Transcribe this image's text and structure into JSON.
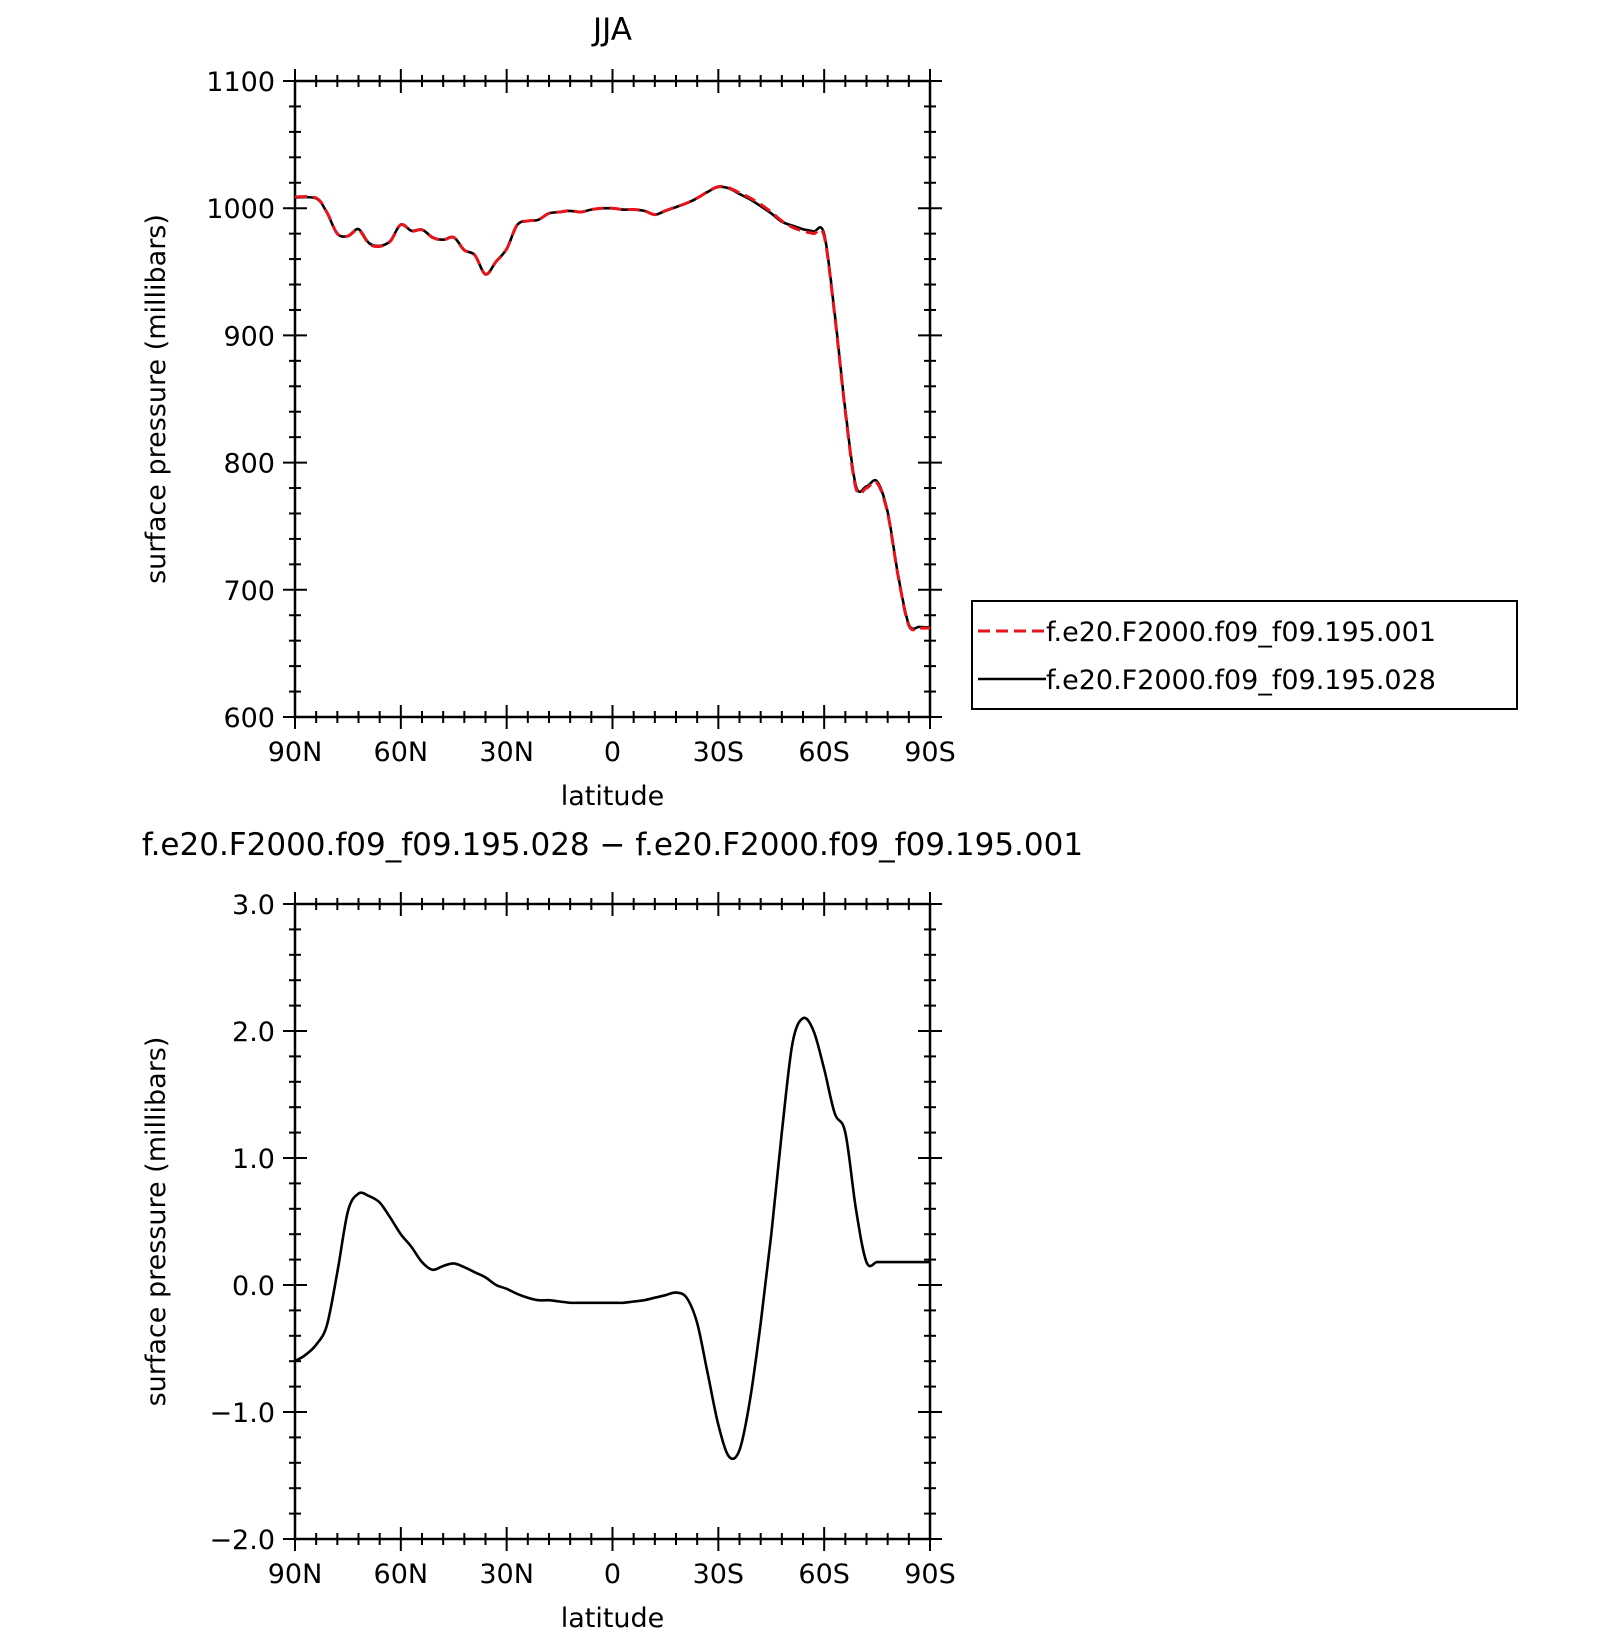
{
  "chart_data": [
    {
      "type": "line",
      "title": "JJA",
      "xlabel": "latitude",
      "ylabel": "surface pressure (millibars)",
      "xlim": [
        90,
        -90
      ],
      "ylim": [
        600,
        1100
      ],
      "xticks": [
        90,
        60,
        30,
        0,
        -30,
        -60,
        -90
      ],
      "xtick_labels": [
        "90N",
        "60N",
        "30N",
        "0",
        "30S",
        "60S",
        "90S"
      ],
      "yticks": [
        600,
        700,
        800,
        900,
        1000,
        1100
      ],
      "ytick_labels": [
        "600",
        "700",
        "800",
        "900",
        "1000",
        "1100"
      ],
      "legend": {
        "position": "right",
        "entries": [
          "f.e20.F2000.f09_f09.195.001",
          "f.e20.F2000.f09_f09.195.028"
        ]
      },
      "series": [
        {
          "name": "f.e20.F2000.f09_f09.195.001",
          "color": "#e8141c",
          "dash": "dashed",
          "x": [
            90,
            84,
            81,
            78,
            75,
            72,
            69,
            66,
            63,
            60,
            57,
            54,
            51,
            48,
            45,
            42,
            39,
            36,
            33,
            30,
            27,
            24,
            21,
            18,
            15,
            12,
            9,
            6,
            3,
            0,
            -3,
            -6,
            -9,
            -12,
            -15,
            -18,
            -21,
            -24,
            -27,
            -30,
            -33,
            -36,
            -39,
            -42,
            -45,
            -48,
            -51,
            -54,
            -57,
            -60,
            -63,
            -66,
            -69,
            -72,
            -75,
            -78,
            -81,
            -84,
            -87,
            -90
          ],
          "y": [
            1009,
            1008,
            997,
            980,
            978,
            983,
            972,
            970,
            974,
            987,
            982,
            983,
            977,
            975,
            977,
            967,
            963,
            948,
            958,
            968,
            987,
            990,
            991,
            996,
            997,
            998,
            997,
            999,
            1000,
            1000,
            999,
            999,
            998,
            995,
            998,
            1001,
            1004,
            1008,
            1013,
            1017,
            1016,
            1012,
            1008,
            1003,
            997,
            990,
            985,
            982,
            980,
            978,
            915,
            840,
            780,
            780,
            784,
            760,
            710,
            672,
            670,
            670
          ]
        },
        {
          "name": "f.e20.F2000.f09_f09.195.028",
          "color": "#000000",
          "dash": "solid",
          "x": [
            90,
            84,
            81,
            78,
            75,
            72,
            69,
            66,
            63,
            60,
            57,
            54,
            51,
            48,
            45,
            42,
            39,
            36,
            33,
            30,
            27,
            24,
            21,
            18,
            15,
            12,
            9,
            6,
            3,
            0,
            -3,
            -6,
            -9,
            -12,
            -15,
            -18,
            -21,
            -24,
            -27,
            -30,
            -33,
            -36,
            -39,
            -42,
            -45,
            -48,
            -51,
            -54,
            -57,
            -60,
            -63,
            -66,
            -69,
            -72,
            -75,
            -78,
            -81,
            -84,
            -87,
            -90
          ],
          "y": [
            1008.5,
            1007.6,
            996.7,
            979.9,
            978.2,
            983.6,
            972.5,
            970.4,
            974.3,
            987.2,
            982.3,
            983.2,
            977.1,
            975.2,
            977.1,
            967.1,
            963.1,
            948.1,
            958.1,
            968,
            986.9,
            989.9,
            990.9,
            995.9,
            996.9,
            997.9,
            996.9,
            998.9,
            999.9,
            999.9,
            998.9,
            998.9,
            997.9,
            994.9,
            997.9,
            1000.9,
            1003.9,
            1007.9,
            1012.9,
            1016.7,
            1015.6,
            1011.2,
            1006.9,
            1001.6,
            995.9,
            989.3,
            986.3,
            983.5,
            981.8,
            979.7,
            916.5,
            841.5,
            781.7,
            781.3,
            785.2,
            761.1,
            710.8,
            672.8,
            670.8,
            670.5
          ]
        }
      ]
    },
    {
      "type": "line",
      "title": "f.e20.F2000.f09_f09.195.028 − f.e20.F2000.f09_f09.195.001",
      "xlabel": "latitude",
      "ylabel": "surface pressure (millibars)",
      "xlim": [
        90,
        -90
      ],
      "ylim": [
        -2.0,
        3.0
      ],
      "xticks": [
        90,
        60,
        30,
        0,
        -30,
        -60,
        -90
      ],
      "xtick_labels": [
        "90N",
        "60N",
        "30N",
        "0",
        "30S",
        "60S",
        "90S"
      ],
      "yticks": [
        -2.0,
        -1.0,
        0.0,
        1.0,
        2.0,
        3.0
      ],
      "ytick_labels": [
        "−2.0",
        "−1.0",
        "0.0",
        "1.0",
        "2.0",
        "3.0"
      ],
      "series": [
        {
          "color": "#000000",
          "dash": "solid",
          "x": [
            90,
            87,
            84,
            81,
            78,
            75,
            72,
            69,
            66,
            63,
            60,
            57,
            54,
            51,
            48,
            45,
            42,
            39,
            36,
            33,
            30,
            27,
            24,
            21,
            18,
            15,
            12,
            9,
            6,
            3,
            0,
            -3,
            -6,
            -9,
            -12,
            -15,
            -18,
            -21,
            -24,
            -27,
            -30,
            -33,
            -36,
            -39,
            -42,
            -45,
            -48,
            -51,
            -54,
            -57,
            -60,
            -63,
            -66,
            -69,
            -72,
            -75,
            -78,
            -81,
            -84,
            -87,
            -90
          ],
          "y": [
            -0.6,
            -0.55,
            -0.47,
            -0.32,
            0.1,
            0.58,
            0.72,
            0.7,
            0.65,
            0.53,
            0.4,
            0.3,
            0.18,
            0.12,
            0.15,
            0.17,
            0.14,
            0.1,
            0.06,
            0.0,
            -0.03,
            -0.07,
            -0.1,
            -0.12,
            -0.12,
            -0.13,
            -0.14,
            -0.14,
            -0.14,
            -0.14,
            -0.14,
            -0.14,
            -0.13,
            -0.12,
            -0.1,
            -0.08,
            -0.06,
            -0.1,
            -0.3,
            -0.7,
            -1.1,
            -1.35,
            -1.3,
            -0.9,
            -0.3,
            0.4,
            1.2,
            1.9,
            2.1,
            2.0,
            1.7,
            1.35,
            1.2,
            0.6,
            0.18,
            0.18,
            0.18,
            0.18,
            0.18,
            0.18,
            0.18
          ]
        }
      ]
    }
  ]
}
